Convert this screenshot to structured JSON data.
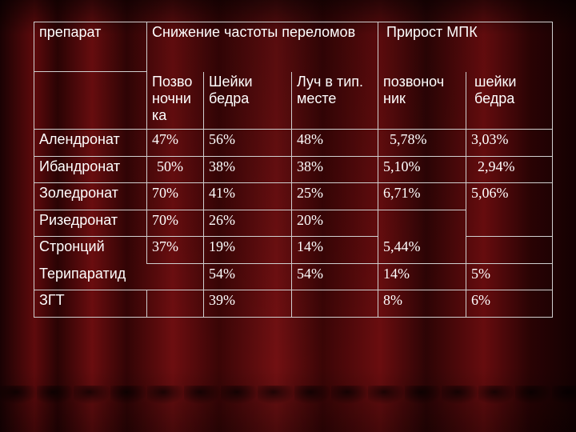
{
  "header": {
    "drug": "препарат",
    "fracture_reduction": "Снижение частоты переломов",
    "bmd_gain": "Прирост МПК"
  },
  "subheader": {
    "vertebral": "Позво ночни ка",
    "hip": "Шейки бедра",
    "radius": "Луч в тип. месте",
    "bmd_spine": "позвоноч ник",
    "bmd_hip": "шейки бедра"
  },
  "rows": [
    {
      "name": "Алендронат",
      "v": "47%",
      "h": "56%",
      "r": "48%",
      "bs": "5,78%",
      "bh": "3,03%"
    },
    {
      "name": "Ибандронат",
      "v": "50%",
      "h": "38%",
      "r": "38%",
      "bs": "5,10%",
      "bh": "2,94%"
    },
    {
      "name": "Золедронат",
      "v": "70%",
      "h": "41%",
      "r": "25%",
      "bs": "6,71%",
      "bh": "5,06%"
    },
    {
      "name": "Ризедронат",
      "v": "70%",
      "h": "26%",
      "r": "20%",
      "bs": "",
      "bh": ""
    },
    {
      "name": "Стронций",
      "v": "37%",
      "h": "19%",
      "r": "14%",
      "bs": "5,44%",
      "bh": ""
    },
    {
      "name": "Терипаратид",
      "v": "",
      "h": "54%",
      "r": "54%",
      "bs": "14%",
      "bh": "5%"
    },
    {
      "name": "ЗГТ",
      "v": "",
      "h": "39%",
      "r": "",
      "bs": "8%",
      "bh": "6%"
    }
  ],
  "colors": {
    "text": "#ffffff",
    "border": "#cfcfcf",
    "background": "#5e0a0c"
  }
}
